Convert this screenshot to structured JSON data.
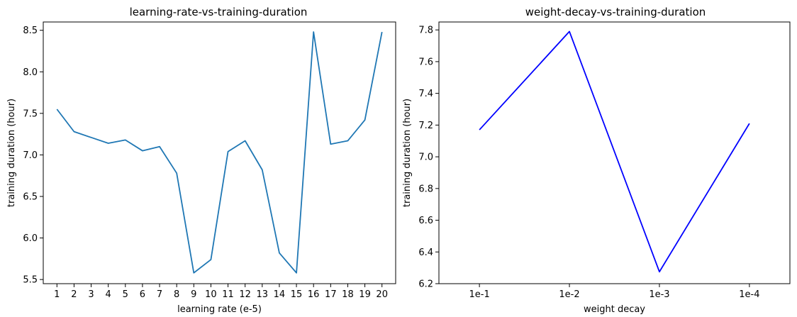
{
  "chart_data": [
    {
      "type": "line",
      "title": "learning-rate-vs-training-duration",
      "xlabel": "learning rate (e-5)",
      "ylabel": "training duration (hour)",
      "x": [
        1,
        2,
        3,
        4,
        5,
        6,
        7,
        8,
        9,
        10,
        11,
        12,
        13,
        14,
        15,
        16,
        17,
        18,
        19,
        20
      ],
      "x_tick_labels": [
        "1",
        "2",
        "3",
        "4",
        "5",
        "6",
        "7",
        "8",
        "9",
        "10",
        "11",
        "12",
        "13",
        "14",
        "15",
        "16",
        "17",
        "18",
        "19",
        "20"
      ],
      "series": [
        {
          "color": "#1f77b4",
          "values": [
            7.55,
            7.28,
            7.21,
            7.14,
            7.18,
            7.05,
            7.1,
            6.78,
            5.58,
            5.74,
            7.04,
            7.17,
            6.82,
            5.82,
            5.58,
            8.48,
            7.13,
            7.17,
            7.42,
            8.48
          ]
        }
      ],
      "xlim": [
        0.2,
        20.8
      ],
      "ylim": [
        5.45,
        8.6
      ],
      "y_ticks": [
        5.5,
        6.0,
        6.5,
        7.0,
        7.5,
        8.0,
        8.5
      ],
      "y_tick_labels": [
        "5.5",
        "6.0",
        "6.5",
        "7.0",
        "7.5",
        "8.0",
        "8.5"
      ],
      "grid": false
    },
    {
      "type": "line",
      "title": "weight-decay-vs-training-duration",
      "xlabel": "weight decay",
      "ylabel": "training duration (hour)",
      "categories": [
        "1e-1",
        "1e-2",
        "1e-3",
        "1e-4"
      ],
      "series": [
        {
          "color": "#0000ff",
          "values": [
            7.17,
            7.79,
            6.275,
            7.21
          ]
        }
      ],
      "ylim": [
        6.2,
        7.85
      ],
      "y_ticks": [
        6.2,
        6.4,
        6.6,
        6.8,
        7.0,
        7.2,
        7.4,
        7.6,
        7.8
      ],
      "y_tick_labels": [
        "6.2",
        "6.4",
        "6.6",
        "6.8",
        "7.0",
        "7.2",
        "7.4",
        "7.6",
        "7.8"
      ],
      "grid": false
    }
  ]
}
